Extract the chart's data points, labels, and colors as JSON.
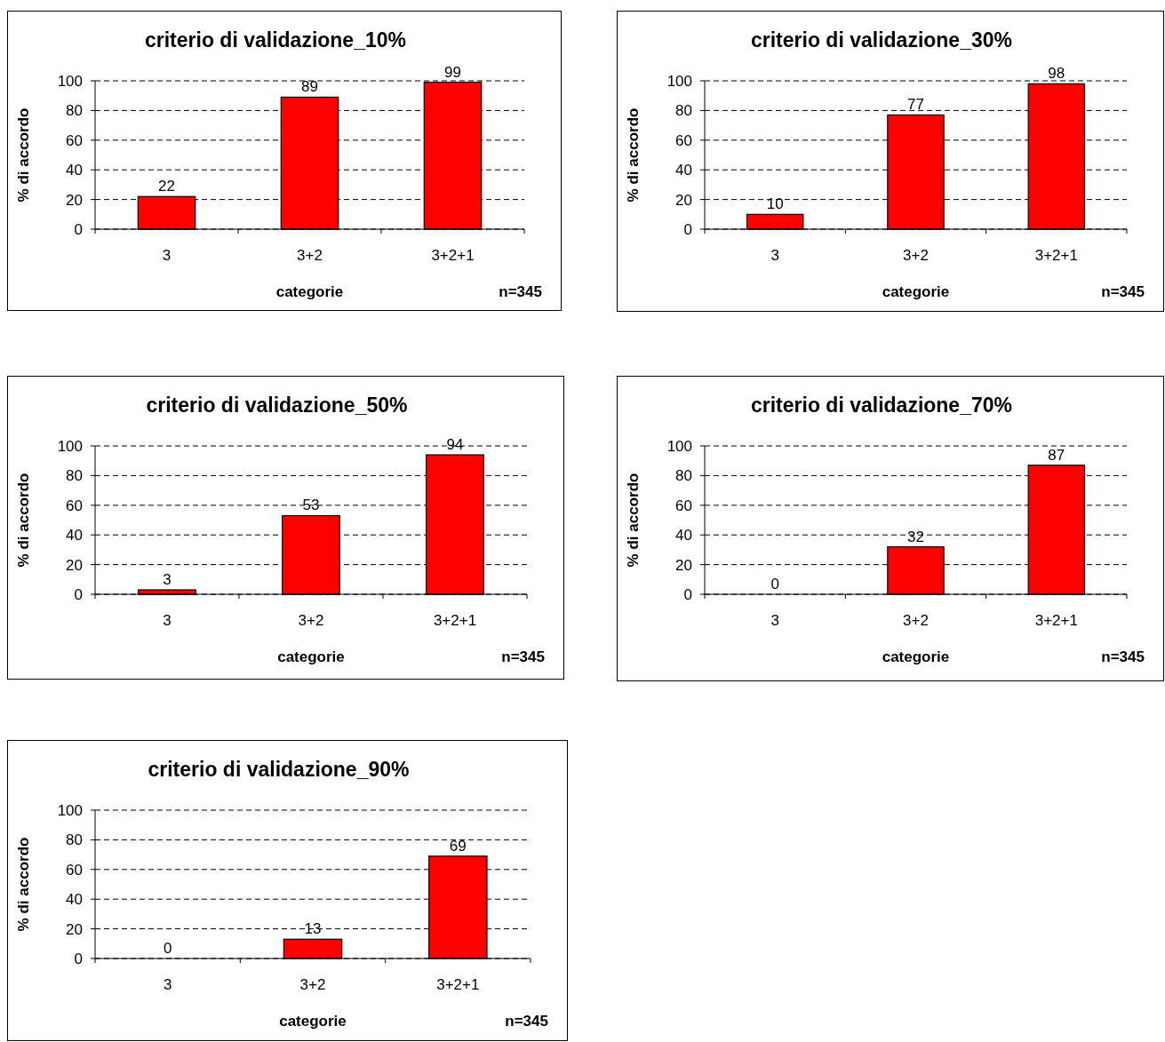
{
  "chart_data": [
    {
      "type": "bar",
      "title": "criterio di validazione_10%",
      "xlabel": "categorie",
      "ylabel": "% di accordo",
      "categories": [
        "3",
        "3+2",
        "3+2+1"
      ],
      "values": [
        22,
        89,
        99
      ],
      "color": "#ff0000",
      "ylim": [
        0,
        100
      ],
      "yticks": [
        0,
        20,
        40,
        60,
        80,
        100
      ],
      "grid": "y",
      "data_labels": true,
      "annotations": [
        "n=345"
      ]
    },
    {
      "type": "bar",
      "title": "criterio di validazione_30%",
      "xlabel": "categorie",
      "ylabel": "% di accordo",
      "categories": [
        "3",
        "3+2",
        "3+2+1"
      ],
      "values": [
        10,
        77,
        98
      ],
      "color": "#ff0000",
      "ylim": [
        0,
        100
      ],
      "yticks": [
        0,
        20,
        40,
        60,
        80,
        100
      ],
      "grid": "y",
      "data_labels": true,
      "annotations": [
        "n=345"
      ]
    },
    {
      "type": "bar",
      "title": "criterio di validazione_50%",
      "xlabel": "categorie",
      "ylabel": "% di accordo",
      "categories": [
        "3",
        "3+2",
        "3+2+1"
      ],
      "values": [
        3,
        53,
        94
      ],
      "color": "#ff0000",
      "ylim": [
        0,
        100
      ],
      "yticks": [
        0,
        20,
        40,
        60,
        80,
        100
      ],
      "grid": "y",
      "data_labels": true,
      "annotations": [
        "n=345"
      ]
    },
    {
      "type": "bar",
      "title": "criterio di validazione_70%",
      "xlabel": "categorie",
      "ylabel": "% di accordo",
      "categories": [
        "3",
        "3+2",
        "3+2+1"
      ],
      "values": [
        0,
        32,
        87
      ],
      "color": "#ff0000",
      "ylim": [
        0,
        100
      ],
      "yticks": [
        0,
        20,
        40,
        60,
        80,
        100
      ],
      "grid": "y",
      "data_labels": true,
      "annotations": [
        "n=345"
      ]
    },
    {
      "type": "bar",
      "title": "criterio di validazione_90%",
      "xlabel": "categorie",
      "ylabel": "% di accordo",
      "categories": [
        "3",
        "3+2",
        "3+2+1"
      ],
      "values": [
        0,
        13,
        69
      ],
      "color": "#ff0000",
      "ylim": [
        0,
        100
      ],
      "yticks": [
        0,
        20,
        40,
        60,
        80,
        100
      ],
      "grid": "y",
      "data_labels": true,
      "annotations": [
        "n=345"
      ]
    }
  ]
}
